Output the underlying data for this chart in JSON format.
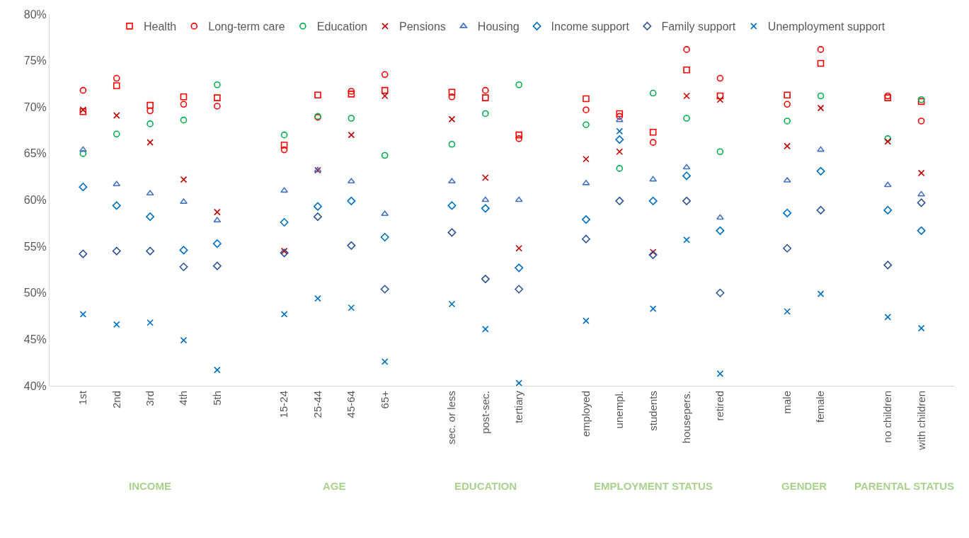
{
  "chart_data": {
    "type": "scatter",
    "categories": [
      "1st",
      "2nd",
      "3rd",
      "4th",
      "5th",
      null,
      "15-24",
      "25-44",
      "45-64",
      "65+",
      null,
      "sec. or less",
      "post-sec.",
      "tertiary",
      null,
      "employed",
      "unempl.",
      "students",
      "housepers.",
      "retired",
      null,
      "male",
      "female",
      null,
      "no children",
      "with children"
    ],
    "series": [
      {
        "name": "Health",
        "color": "#ff0000",
        "marker": "square",
        "values": [
          69.5,
          72.3,
          70.2,
          71.1,
          71.0,
          null,
          65.9,
          71.3,
          71.4,
          71.8,
          null,
          71.6,
          71.0,
          67.0,
          null,
          70.9,
          69.3,
          67.3,
          74.0,
          71.2,
          null,
          71.3,
          74.7,
          null,
          71.0,
          70.6
        ]
      },
      {
        "name": "Long-term care",
        "color": "#ff0000",
        "marker": "circle",
        "values": [
          71.8,
          73.1,
          69.6,
          70.3,
          70.1,
          null,
          65.4,
          68.9,
          71.7,
          73.5,
          null,
          71.1,
          71.8,
          66.6,
          null,
          69.7,
          69.0,
          66.2,
          76.2,
          73.1,
          null,
          70.3,
          76.2,
          null,
          71.2,
          68.5
        ]
      },
      {
        "name": "Education",
        "color": "#00b050",
        "marker": "circle",
        "values": [
          65.0,
          67.1,
          68.2,
          68.6,
          72.4,
          null,
          67.0,
          69.0,
          68.8,
          64.8,
          null,
          66.0,
          69.3,
          72.4,
          null,
          68.1,
          63.4,
          71.5,
          68.8,
          65.2,
          null,
          68.5,
          71.2,
          null,
          66.6,
          70.8
        ]
      },
      {
        "name": "Pensions",
        "color": "#c00000",
        "marker": "cross",
        "values": [
          69.7,
          69.1,
          66.2,
          62.2,
          58.7,
          null,
          54.5,
          63.2,
          67.0,
          71.2,
          null,
          68.7,
          62.4,
          54.8,
          null,
          64.4,
          65.2,
          54.4,
          71.2,
          70.8,
          null,
          65.8,
          69.9,
          null,
          66.3,
          62.9
        ]
      },
      {
        "name": "Housing",
        "color": "#4472c4",
        "marker": "triangle",
        "values": [
          65.4,
          61.7,
          60.7,
          59.8,
          57.8,
          null,
          61.0,
          63.2,
          62.0,
          58.5,
          null,
          62.0,
          60.0,
          60.0,
          null,
          61.8,
          68.6,
          62.2,
          63.5,
          58.1,
          null,
          62.1,
          65.4,
          null,
          61.6,
          60.6
        ]
      },
      {
        "name": "Income support",
        "color": "#0070c0",
        "marker": "diamond",
        "values": [
          61.4,
          59.4,
          58.2,
          54.6,
          55.3,
          null,
          57.6,
          59.3,
          59.9,
          56.0,
          null,
          59.4,
          59.1,
          52.7,
          null,
          57.9,
          66.5,
          59.9,
          62.6,
          56.7,
          null,
          58.6,
          63.1,
          null,
          58.9,
          56.7
        ]
      },
      {
        "name": "Family support",
        "color": "#2f5597",
        "marker": "diamond",
        "values": [
          54.2,
          54.5,
          54.5,
          52.8,
          52.9,
          null,
          54.3,
          58.2,
          55.1,
          50.4,
          null,
          56.5,
          51.5,
          50.4,
          null,
          55.8,
          59.9,
          54.1,
          59.9,
          50.0,
          null,
          54.8,
          58.9,
          null,
          53.0,
          59.7
        ]
      },
      {
        "name": "Unemployment support",
        "color": "#0070c0",
        "marker": "cross",
        "values": [
          47.7,
          46.6,
          46.8,
          44.9,
          41.7,
          null,
          47.7,
          49.4,
          48.4,
          42.6,
          null,
          48.8,
          46.1,
          40.3,
          null,
          47.0,
          67.4,
          48.3,
          55.7,
          41.3,
          null,
          48.0,
          49.9,
          null,
          47.4,
          46.2
        ]
      }
    ],
    "ylim": [
      40,
      80
    ],
    "yticks": [
      {
        "value": 40,
        "label": "40%"
      },
      {
        "value": 45,
        "label": "45%"
      },
      {
        "value": 50,
        "label": "50%"
      },
      {
        "value": 55,
        "label": "55%"
      },
      {
        "value": 60,
        "label": "60%"
      },
      {
        "value": 65,
        "label": "65%"
      },
      {
        "value": 70,
        "label": "70%"
      },
      {
        "value": 75,
        "label": "75%"
      },
      {
        "value": 80,
        "label": "80%"
      }
    ],
    "legend": "top",
    "annotations": [
      "INCOME",
      "AGE",
      "EDUCATION",
      "EMPLOYMENT STATUS",
      "GENDER",
      "PARENTAL STATUS"
    ]
  }
}
